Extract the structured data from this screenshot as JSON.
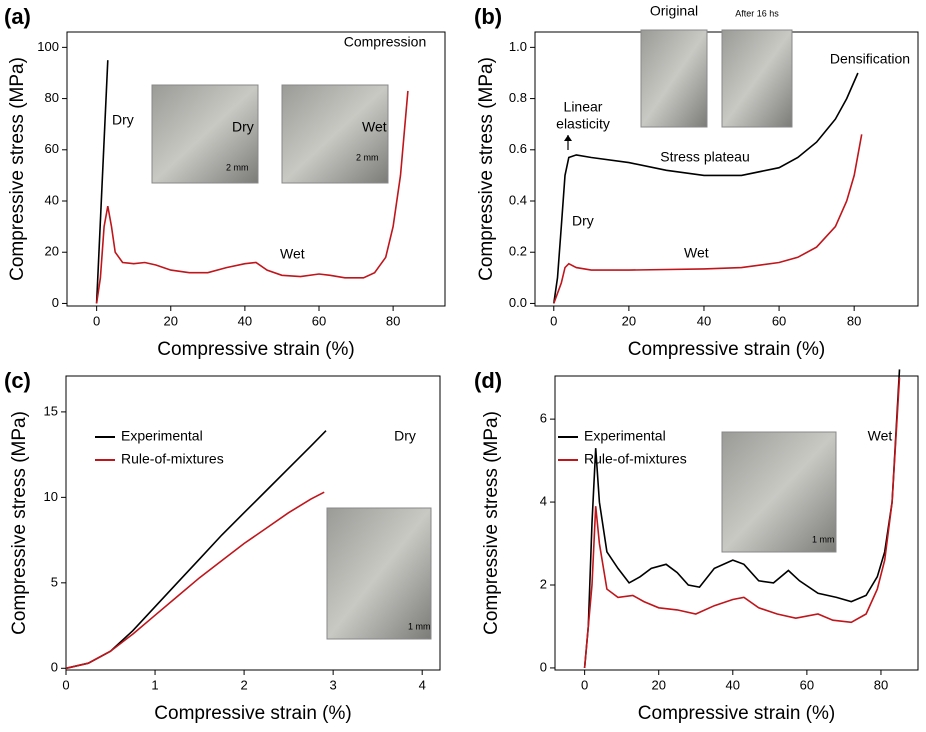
{
  "chart_data": [
    {
      "type": "line",
      "panel_label": "(a)",
      "xlabel": "Compressive strain (%)",
      "ylabel": "Compressive stress (MPa)",
      "xlim": [
        -8,
        94
      ],
      "xticks": [
        0,
        20,
        40,
        60,
        80
      ],
      "ylim": [
        -1,
        106
      ],
      "yticks": [
        0,
        20,
        40,
        60,
        80,
        100
      ],
      "legend": false,
      "series": [
        {
          "name": "Dry",
          "color": "#000000",
          "x": [
            0,
            3
          ],
          "values": [
            0,
            95
          ]
        },
        {
          "name": "Wet",
          "color": "#c0151b",
          "x": [
            0,
            1,
            2,
            3,
            4,
            5,
            7,
            10,
            13,
            16,
            20,
            25,
            30,
            35,
            40,
            43,
            46,
            50,
            55,
            60,
            63,
            67,
            72,
            75,
            78,
            80,
            82,
            84
          ],
          "values": [
            0,
            10,
            30,
            38,
            30,
            20,
            16,
            15.5,
            16,
            15,
            13,
            12,
            12,
            14,
            15.5,
            16,
            13,
            11,
            10.5,
            11.5,
            11,
            10,
            10,
            12,
            18,
            30,
            50,
            83
          ]
        }
      ],
      "annotations": [
        "Compression"
      ],
      "insets": [
        {
          "labels": [
            "Dry",
            "2 mm"
          ]
        },
        {
          "labels": [
            "Wet",
            "2 mm"
          ]
        }
      ]
    },
    {
      "type": "line",
      "panel_label": "(b)",
      "xlabel": "Compressive strain (%)",
      "ylabel": "Compressive stress (MPa)",
      "xlim": [
        -5,
        97
      ],
      "xticks": [
        0,
        20,
        40,
        60,
        80
      ],
      "ylim": [
        -0.01,
        1.06
      ],
      "yticks": [
        {
          "value": 0,
          "label": "0.0"
        },
        0.2,
        0.4,
        0.6,
        0.8,
        {
          "value": 1,
          "label": "1.0"
        }
      ],
      "legend": false,
      "series": [
        {
          "name": "Dry",
          "color": "#000000",
          "x": [
            0,
            1,
            2,
            3,
            4,
            6,
            10,
            20,
            30,
            40,
            50,
            60,
            65,
            70,
            75,
            78,
            81
          ],
          "values": [
            0,
            0.1,
            0.3,
            0.5,
            0.57,
            0.58,
            0.57,
            0.55,
            0.52,
            0.5,
            0.5,
            0.53,
            0.57,
            0.63,
            0.72,
            0.8,
            0.9
          ]
        },
        {
          "name": "Wet",
          "color": "#c0151b",
          "x": [
            0,
            2,
            3,
            4,
            6,
            10,
            20,
            40,
            50,
            60,
            65,
            70,
            75,
            78,
            80,
            82
          ],
          "values": [
            0,
            0.08,
            0.14,
            0.155,
            0.14,
            0.13,
            0.13,
            0.135,
            0.14,
            0.16,
            0.18,
            0.22,
            0.3,
            0.4,
            0.5,
            0.66
          ]
        }
      ],
      "annotations": [
        "Linear",
        "elasticity",
        "Stress plateau",
        "Densification"
      ],
      "insets": [
        {
          "labels": [
            "Original"
          ]
        },
        {
          "labels": [
            "After 16 hs"
          ]
        }
      ]
    },
    {
      "type": "line",
      "panel_label": "(c)",
      "xlabel": "Compressive strain (%)",
      "ylabel": "Compressive stress (MPa)",
      "xlim": [
        0,
        4.2
      ],
      "xticks": [
        0,
        1,
        2,
        3,
        4
      ],
      "ylim": [
        -0.1,
        17.1
      ],
      "yticks": [
        0,
        5,
        10,
        15
      ],
      "legend": true,
      "series": [
        {
          "name": "Experimental",
          "color": "#000000",
          "x": [
            0,
            0.25,
            0.5,
            0.75,
            1,
            1.25,
            1.5,
            1.75,
            2,
            2.25,
            2.5,
            2.75,
            2.92
          ],
          "values": [
            0,
            0.3,
            1.0,
            2.2,
            3.6,
            5.0,
            6.4,
            7.8,
            9.1,
            10.4,
            11.7,
            13.0,
            13.9
          ]
        },
        {
          "name": "Rule-of-mixtures",
          "color": "#c0151b",
          "x": [
            0,
            0.25,
            0.5,
            0.75,
            1,
            1.25,
            1.5,
            1.75,
            2,
            2.25,
            2.5,
            2.75,
            2.9
          ],
          "values": [
            0,
            0.3,
            1.0,
            2.0,
            3.1,
            4.2,
            5.3,
            6.3,
            7.3,
            8.2,
            9.1,
            9.9,
            10.3
          ]
        }
      ],
      "annotations": [
        "Dry"
      ],
      "insets": [
        {
          "labels": [
            "1 mm"
          ]
        }
      ]
    },
    {
      "type": "line",
      "panel_label": "(d)",
      "xlabel": "Compressive strain (%)",
      "ylabel": "Compressive stress (MPa)",
      "xlim": [
        -8,
        90
      ],
      "xticks": [
        0,
        20,
        40,
        60,
        80
      ],
      "ylim": [
        -0.05,
        7.04
      ],
      "yticks": [
        0,
        2,
        4,
        6
      ],
      "legend": true,
      "series": [
        {
          "name": "Experimental",
          "color": "#000000",
          "x": [
            0,
            1,
            2,
            3,
            4,
            6,
            9,
            12,
            15,
            18,
            22,
            25,
            28,
            31,
            35,
            40,
            43,
            47,
            51,
            55,
            58,
            63,
            68,
            72,
            76,
            79,
            81,
            83,
            85
          ],
          "values": [
            0,
            1,
            3.5,
            5.3,
            4,
            2.8,
            2.4,
            2.05,
            2.2,
            2.4,
            2.5,
            2.3,
            2.0,
            1.95,
            2.4,
            2.6,
            2.5,
            2.1,
            2.05,
            2.35,
            2.1,
            1.8,
            1.7,
            1.6,
            1.75,
            2.2,
            2.8,
            4,
            7.2
          ]
        },
        {
          "name": "Rule-of-mixtures",
          "color": "#c0151b",
          "x": [
            0,
            2,
            3,
            4,
            6,
            9,
            13,
            16,
            20,
            25,
            30,
            35,
            40,
            43,
            47,
            52,
            57,
            63,
            67,
            72,
            76,
            79,
            81,
            83,
            85
          ],
          "values": [
            0,
            2,
            3.9,
            3,
            1.9,
            1.7,
            1.75,
            1.6,
            1.45,
            1.4,
            1.3,
            1.5,
            1.65,
            1.7,
            1.45,
            1.3,
            1.2,
            1.3,
            1.15,
            1.1,
            1.3,
            1.9,
            2.6,
            4,
            7
          ]
        }
      ],
      "annotations": [
        "Wet"
      ],
      "insets": [
        {
          "labels": [
            "1 mm"
          ]
        }
      ]
    }
  ]
}
